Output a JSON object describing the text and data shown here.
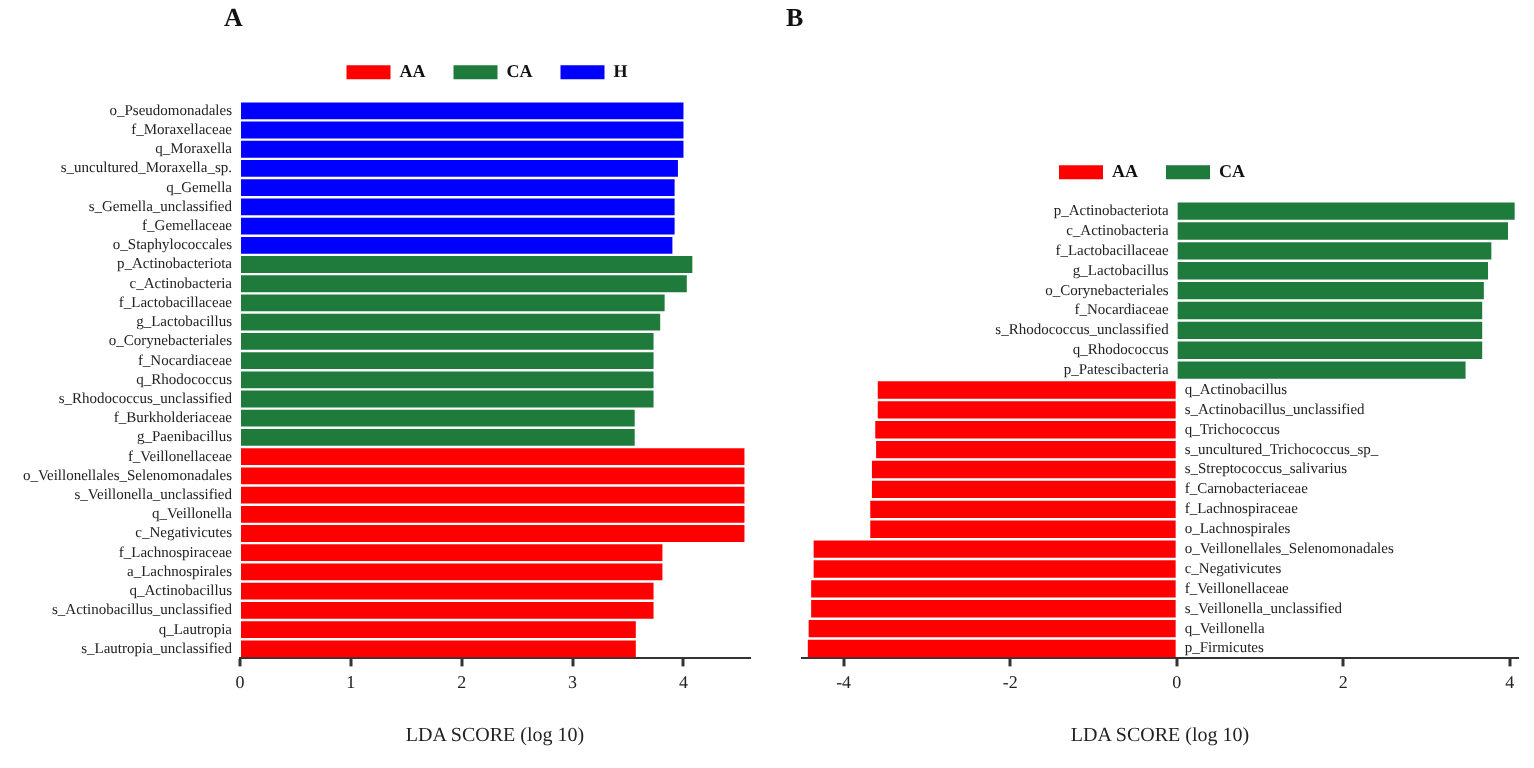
{
  "chart_data": [
    {
      "type": "bar",
      "orientation": "horizontal",
      "title": "A",
      "xlabel": "LDA SCORE (log 10)",
      "legend": "top",
      "xlim": [
        0,
        4.6
      ],
      "xticks": [
        0,
        1,
        2,
        3,
        4
      ],
      "categories": [
        "o_Pseudomonadales",
        "f_Moraxellaceae",
        "q_Moraxella",
        "s_uncultured_Moraxella_sp.",
        "q_Gemella",
        "s_Gemella_unclassified",
        "f_Gemellaceae",
        "o_Staphylococcales",
        "p_Actinobacteriota",
        "c_Actinobacteria",
        "f_Lactobacillaceae",
        "g_Lactobacillus",
        "o_Corynebacteriales",
        "f_Nocardiaceae",
        "q_Rhodococcus",
        "s_Rhodococcus_unclassified",
        "f_Burkholderiaceae",
        "g_Paenibacillus",
        "f_Veillonellaceae",
        "o_Veillonellales_Selenomonadales",
        "s_Veillonella_unclassified",
        "q_Veillonella",
        "c_Negativicutes",
        "f_Lachnospiraceae",
        "a_Lachnospirales",
        "q_Actinobacillus",
        "s_Actinobacillus_unclassified",
        "q_Lautropia",
        "s_Lautropia_unclassified"
      ],
      "series": [
        {
          "name": "AA",
          "color": "#ff0000",
          "values": [
            null,
            null,
            null,
            null,
            null,
            null,
            null,
            null,
            null,
            null,
            null,
            null,
            null,
            null,
            null,
            null,
            null,
            null,
            4.55,
            4.55,
            4.55,
            4.55,
            4.55,
            3.81,
            3.81,
            3.73,
            3.73,
            3.57,
            3.57
          ]
        },
        {
          "name": "CA",
          "color": "#1e7b3c",
          "values": [
            null,
            null,
            null,
            null,
            null,
            null,
            null,
            null,
            4.08,
            4.03,
            3.83,
            3.79,
            3.73,
            3.73,
            3.73,
            3.73,
            3.56,
            3.56,
            null,
            null,
            null,
            null,
            null,
            null,
            null,
            null,
            null,
            null,
            null
          ]
        },
        {
          "name": "H",
          "color": "#0000ff",
          "values": [
            4.0,
            4.0,
            4.0,
            3.95,
            3.92,
            3.92,
            3.92,
            3.9,
            null,
            null,
            null,
            null,
            null,
            null,
            null,
            null,
            null,
            null,
            null,
            null,
            null,
            null,
            null,
            null,
            null,
            null,
            null,
            null,
            null
          ]
        }
      ]
    },
    {
      "type": "bar",
      "orientation": "horizontal",
      "title": "B",
      "xlabel": "LDA SCORE (log 10)",
      "legend": "top",
      "xlim": [
        -4.5,
        4.1
      ],
      "xticks": [
        -4,
        -2,
        0,
        2,
        4
      ],
      "categories": [
        "p_Actinobacteriota",
        "c_Actinobacteria",
        "f_Lactobacillaceae",
        "g_Lactobacillus",
        "o_Corynebacteriales",
        "f_Nocardiaceae",
        "s_Rhodococcus_unclassified",
        "q_Rhodococcus",
        "p_Patescibacteria",
        "q_Actinobacillus",
        "s_Actinobacillus_unclassified",
        "q_Trichococcus",
        "s_uncultured_Trichococcus_sp_",
        "s_Streptococcus_salivarius",
        "f_Carnobacteriaceae",
        "f_Lachnospiraceae",
        "o_Lachnospirales",
        "o_Veillonellales_Selenomonadales",
        "c_Negativicutes",
        "f_Veillonellaceae",
        "s_Veillonella_unclassified",
        "q_Veillonella",
        "p_Firmicutes"
      ],
      "series": [
        {
          "name": "AA",
          "color": "#ff0000",
          "values": [
            null,
            null,
            null,
            null,
            null,
            null,
            null,
            null,
            null,
            -3.59,
            -3.59,
            -3.62,
            -3.61,
            -3.66,
            -3.66,
            -3.68,
            -3.68,
            -4.36,
            -4.36,
            -4.39,
            -4.39,
            -4.42,
            -4.43
          ]
        },
        {
          "name": "CA",
          "color": "#1e7b3c",
          "values": [
            4.06,
            3.98,
            3.78,
            3.74,
            3.69,
            3.67,
            3.67,
            3.67,
            3.47,
            null,
            null,
            null,
            null,
            null,
            null,
            null,
            null,
            null,
            null,
            null,
            null,
            null,
            null
          ]
        }
      ]
    }
  ]
}
